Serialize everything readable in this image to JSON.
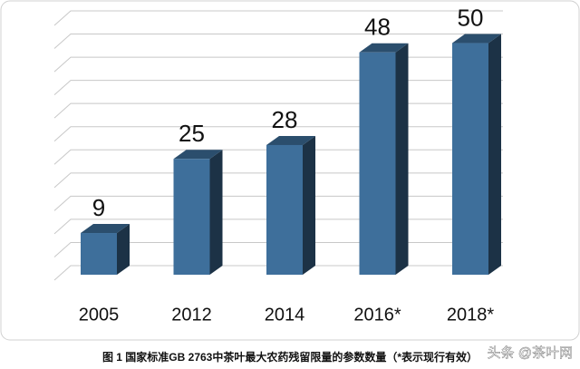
{
  "chart_data": {
    "type": "bar3d",
    "categories": [
      "2005",
      "2012",
      "2014",
      "2016*",
      "2018*"
    ],
    "values": [
      9,
      25,
      28,
      48,
      50
    ],
    "color": "#3e6f9b",
    "ylim": [
      0,
      55
    ],
    "yticks": [
      0,
      5,
      10,
      15,
      20,
      25,
      30,
      35,
      40,
      45,
      50,
      55
    ],
    "grid": true
  },
  "caption": "图 1 国家标准GB 2763中茶叶最大农药残留限量的参数数量（*表示现行有效）",
  "watermark": "头条 @茶叶网"
}
